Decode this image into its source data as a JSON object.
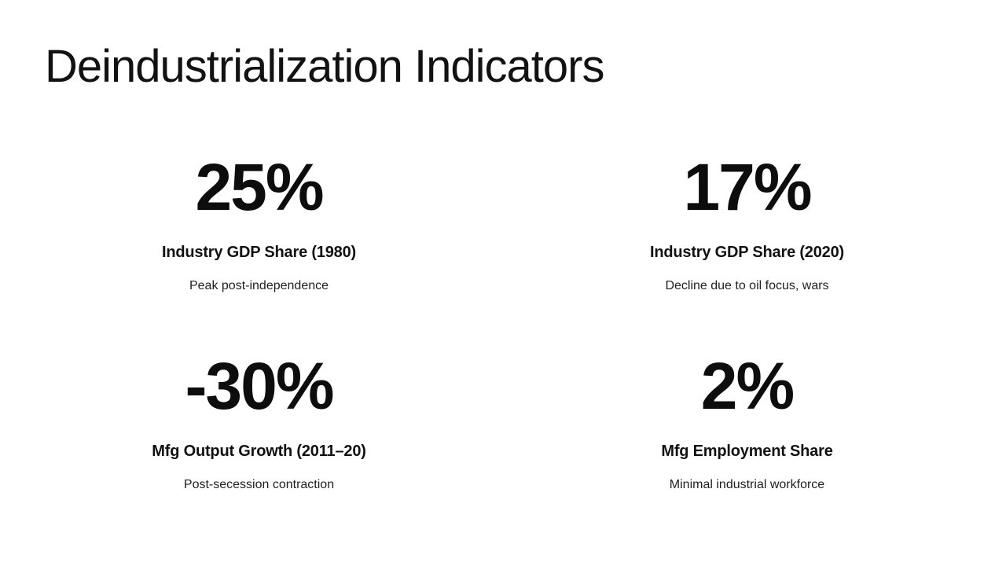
{
  "slide": {
    "title": "Deindustrialization Indicators"
  },
  "stats": [
    {
      "value": "25%",
      "label": "Industry GDP Share (1980)",
      "description": "Peak post-independence"
    },
    {
      "value": "17%",
      "label": "Industry GDP Share (2020)",
      "description": "Decline due to oil focus, wars"
    },
    {
      "value": "-30%",
      "label": "Mfg Output Growth (2011–20)",
      "description": "Post-secession contraction"
    },
    {
      "value": "2%",
      "label": "Mfg Employment Share",
      "description": "Minimal industrial workforce"
    }
  ],
  "colors": {
    "background": "#ffffff",
    "title_text": "#121212",
    "value_text": "#0d0d0d",
    "label_text": "#111111",
    "description_text": "#1f1f1f"
  }
}
